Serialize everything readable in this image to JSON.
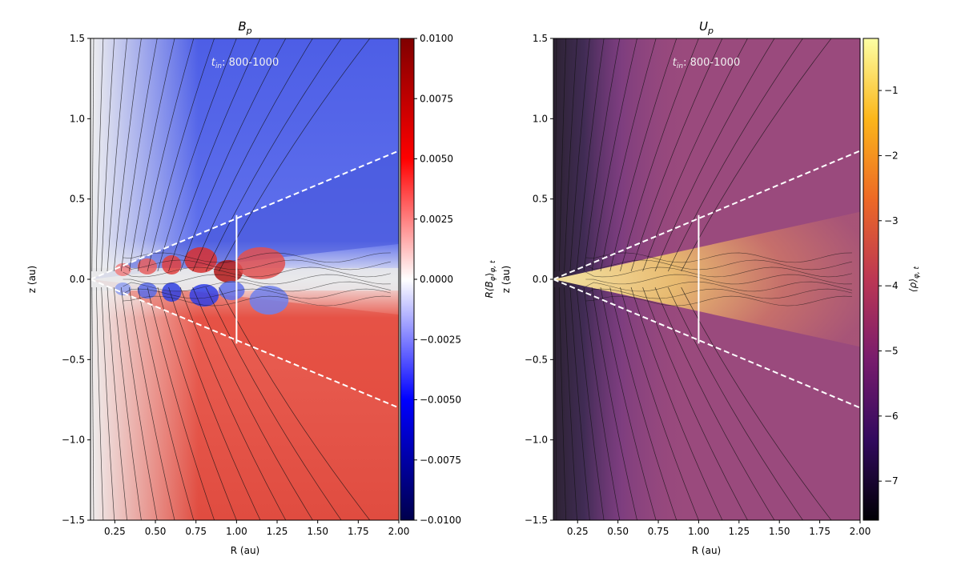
{
  "chart_data": [
    {
      "type": "heatmap",
      "title": "B_p",
      "title_main": "B",
      "title_sub": "p",
      "annotation": "t_in: 800-1000",
      "annotation_main": "t",
      "annotation_sub": "in",
      "annotation_rest": ": 800-1000",
      "xlabel": "R (au)",
      "ylabel": "z (au)",
      "xlim": [
        0.1,
        2.0
      ],
      "ylim": [
        -1.5,
        1.5
      ],
      "xticks": [
        0.25,
        0.5,
        0.75,
        1.0,
        1.25,
        1.5,
        1.75,
        2.0
      ],
      "xtick_labels": [
        "0.25",
        "0.50",
        "0.75",
        "1.00",
        "1.25",
        "1.50",
        "1.75",
        "2.00"
      ],
      "yticks": [
        1.5,
        1.0,
        0.5,
        0.0,
        -0.5,
        -1.0,
        -1.5
      ],
      "ytick_labels": [
        "1.5",
        "1.0",
        "0.5",
        "0.0",
        "−0.5",
        "−1.0",
        "−1.5"
      ],
      "colorbar": {
        "label": "R⟨B_φ⟩_φ,t",
        "label_text": "R⟨B",
        "label_sub": "φ",
        "label_close": "⟩",
        "label_sub2": "φ, t",
        "colormap": "seismic",
        "range": [
          -0.01,
          0.01
        ],
        "ticks": [
          0.01,
          0.0075,
          0.005,
          0.0025,
          0.0,
          -0.0025,
          -0.005,
          -0.0075,
          -0.01
        ],
        "tick_labels": [
          "0.0100",
          "0.0075",
          "0.0050",
          "0.0025",
          "0.0000",
          "−0.0025",
          "−0.0050",
          "−0.0075",
          "−0.0100"
        ],
        "colors": [
          "#00004c",
          "#0000ff",
          "#ffffff",
          "#ff0000",
          "#7f0000"
        ]
      },
      "overlays": {
        "dashed_cone_slope": 0.4,
        "vertical_marker_R": 1.0,
        "vertical_marker_z": [
          -0.4,
          0.4
        ],
        "streamlines": "field lines of poloidal magnetic field"
      }
    },
    {
      "type": "heatmap",
      "title": "U_p",
      "title_main": "U",
      "title_sub": "p",
      "annotation": "t_in: 800-1000",
      "annotation_main": "t",
      "annotation_sub": "in",
      "annotation_rest": ": 800-1000",
      "xlabel": "R (au)",
      "ylabel": "z (au)",
      "xlim": [
        0.1,
        2.0
      ],
      "ylim": [
        -1.5,
        1.5
      ],
      "xticks": [
        0.25,
        0.5,
        0.75,
        1.0,
        1.25,
        1.5,
        1.75,
        2.0
      ],
      "xtick_labels": [
        "0.25",
        "0.50",
        "0.75",
        "1.00",
        "1.25",
        "1.50",
        "1.75",
        "2.00"
      ],
      "yticks": [
        1.5,
        1.0,
        0.5,
        0.0,
        -0.5,
        -1.0,
        -1.5
      ],
      "ytick_labels": [
        "1.5",
        "1.0",
        "0.5",
        "0.0",
        "−0.5",
        "−1.0",
        "−1.5"
      ],
      "colorbar": {
        "label": "⟨ρ⟩_φ,t",
        "label_text": "⟨ρ⟩",
        "label_sub": "φ, t",
        "colormap": "inferno",
        "range": [
          -7.6,
          -0.2
        ],
        "ticks": [
          -1,
          -2,
          -3,
          -4,
          -5,
          -6,
          -7
        ],
        "tick_labels": [
          "−1",
          "−2",
          "−3",
          "−4",
          "−5",
          "−6",
          "−7"
        ],
        "colors": [
          "#000004",
          "#320a5e",
          "#781c6d",
          "#bc3754",
          "#ed6925",
          "#fbb61a",
          "#fcffa4"
        ]
      },
      "overlays": {
        "dashed_cone_slope": 0.4,
        "vertical_marker_R": 1.0,
        "vertical_marker_z": [
          -0.4,
          0.4
        ],
        "streamlines": "velocity streamlines"
      }
    }
  ]
}
